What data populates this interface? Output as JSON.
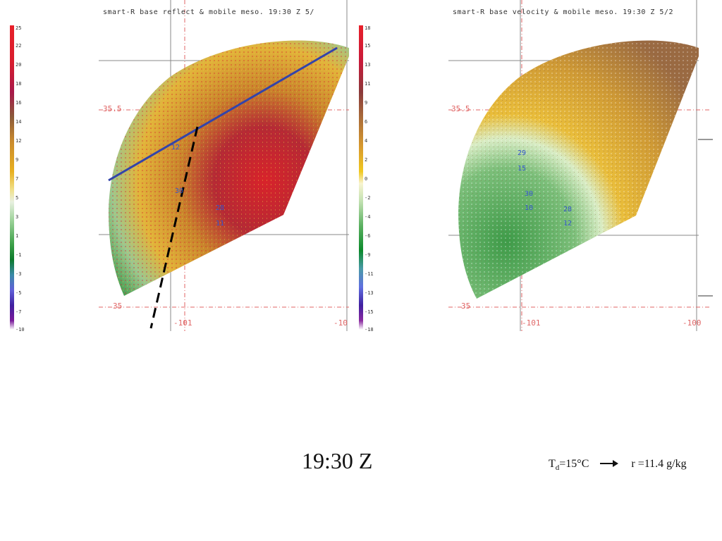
{
  "left_panel": {
    "title": "smart-R base reflect & mobile meso. 19:30 Z 5/",
    "lat_labels": [
      "35.5",
      "35"
    ],
    "lon_labels": [
      "-101",
      "-10"
    ],
    "storm_labels": [
      "30",
      "12",
      "28",
      "11"
    ],
    "scale": [
      "25",
      "22",
      "20",
      "18",
      "16",
      "14",
      "12",
      "9",
      "7",
      "5",
      "3",
      "1",
      "-1",
      "-3",
      "-5",
      "-7",
      "-10"
    ]
  },
  "right_panel": {
    "title": "smart-R base velocity & mobile meso. 19:30 Z 5/2",
    "lat_labels": [
      "35.5",
      "35"
    ],
    "lon_labels": [
      "-101",
      "-100"
    ],
    "storm_labels": [
      "29",
      "15",
      "30",
      "10",
      "28",
      "12"
    ],
    "scale": [
      "18",
      "15",
      "13",
      "11",
      "9",
      "6",
      "4",
      "2",
      "0",
      "-2",
      "-4",
      "-6",
      "-9",
      "-11",
      "-13",
      "-15",
      "-18"
    ]
  },
  "caption": {
    "time": "19:30 Z",
    "td_prefix": "T",
    "td_sub": "d",
    "td_value": "=15°C",
    "arrow_icon": "right-arrow-icon",
    "mixing_ratio": "r =11.4 g/kg"
  }
}
